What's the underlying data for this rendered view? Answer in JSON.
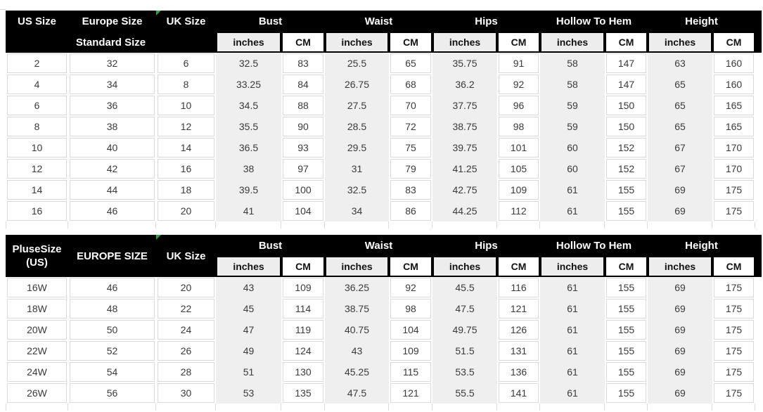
{
  "colors": {
    "header_bg": "#000000",
    "header_text": "#ffffff",
    "subheader_gray_bg": "#ededed",
    "subheader_white_bg": "#ffffff",
    "inches_column_bg": "#efefef",
    "cell_border": "#d9d9d9",
    "body_text": "#3a3a3a",
    "marker_green": "#2f9e4a"
  },
  "icons": {
    "uk_size_marker": "green-corner-triangle"
  },
  "chart_data": [
    {
      "type": "table",
      "title": "Standard Size",
      "size_col1": "US Size",
      "size_col2": "Europe Size",
      "size_col3": "UK Size",
      "row2_label": "Standard Size",
      "measure_groups": [
        "Bust",
        "Waist",
        "Hips",
        "Hollow To Hem",
        "Height"
      ],
      "unit_inches": "inches",
      "unit_cm": "CM",
      "rows": [
        [
          "2",
          "32",
          "6",
          "32.5",
          "83",
          "25.5",
          "65",
          "35.75",
          "91",
          "58",
          "147",
          "63",
          "160"
        ],
        [
          "4",
          "34",
          "8",
          "33.25",
          "84",
          "26.75",
          "68",
          "36.2",
          "92",
          "58",
          "147",
          "65",
          "160"
        ],
        [
          "6",
          "36",
          "10",
          "34.5",
          "88",
          "27.5",
          "70",
          "37.75",
          "96",
          "59",
          "150",
          "65",
          "165"
        ],
        [
          "8",
          "38",
          "12",
          "35.5",
          "90",
          "28.5",
          "72",
          "38.75",
          "98",
          "59",
          "150",
          "65",
          "165"
        ],
        [
          "10",
          "40",
          "14",
          "36.5",
          "93",
          "29.5",
          "75",
          "39.75",
          "101",
          "60",
          "152",
          "67",
          "170"
        ],
        [
          "12",
          "42",
          "16",
          "38",
          "97",
          "31",
          "79",
          "41.25",
          "105",
          "60",
          "152",
          "67",
          "170"
        ],
        [
          "14",
          "44",
          "18",
          "39.5",
          "100",
          "32.5",
          "83",
          "42.75",
          "109",
          "61",
          "155",
          "69",
          "175"
        ],
        [
          "16",
          "46",
          "20",
          "41",
          "104",
          "34",
          "86",
          "44.25",
          "112",
          "61",
          "155",
          "69",
          "175"
        ]
      ]
    },
    {
      "type": "table",
      "title": "Plus Size",
      "size_col1": "PluseSize (US)",
      "size_col1_line1": "PluseSize",
      "size_col1_line2": "(US)",
      "size_col2": "EUROPE SIZE",
      "size_col3": "UK Size",
      "measure_groups": [
        "Bust",
        "Waist",
        "Hips",
        "Hollow To Hem",
        "Height"
      ],
      "unit_inches": "inches",
      "unit_cm": "CM",
      "rows": [
        [
          "16W",
          "46",
          "20",
          "43",
          "109",
          "36.25",
          "92",
          "45.5",
          "116",
          "61",
          "155",
          "69",
          "175"
        ],
        [
          "18W",
          "48",
          "22",
          "45",
          "114",
          "38.75",
          "98",
          "47.5",
          "121",
          "61",
          "155",
          "69",
          "175"
        ],
        [
          "20W",
          "50",
          "24",
          "47",
          "119",
          "40.75",
          "104",
          "49.75",
          "126",
          "61",
          "155",
          "69",
          "175"
        ],
        [
          "22W",
          "52",
          "26",
          "49",
          "124",
          "43",
          "109",
          "51.5",
          "131",
          "61",
          "155",
          "69",
          "175"
        ],
        [
          "24W",
          "54",
          "28",
          "51",
          "130",
          "45.25",
          "115",
          "53.5",
          "136",
          "61",
          "155",
          "69",
          "175"
        ],
        [
          "26W",
          "56",
          "30",
          "53",
          "135",
          "47.5",
          "121",
          "55.5",
          "141",
          "61",
          "155",
          "69",
          "175"
        ]
      ]
    }
  ]
}
